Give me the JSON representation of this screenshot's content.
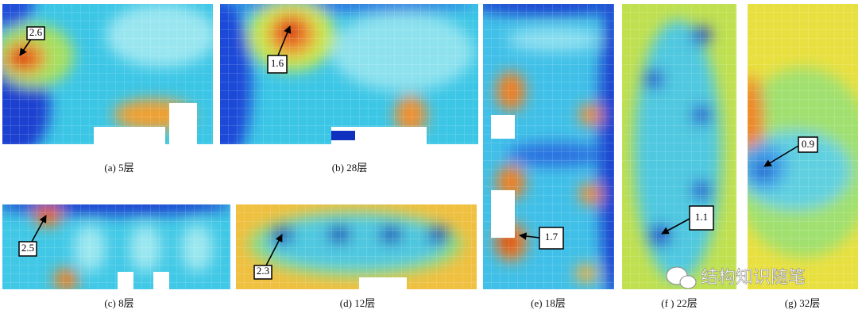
{
  "panels": [
    {
      "caption": "(a) 5层",
      "annotation": 2.6
    },
    {
      "caption": "(b) 28层",
      "annotation": 1.6
    },
    {
      "caption": "(c) 8层",
      "annotation": 2.5
    },
    {
      "caption": "(d) 12层",
      "annotation": 2.3
    },
    {
      "caption": "(e) 18层",
      "annotation": 1.7
    },
    {
      "caption": "(f ) 22层",
      "annotation": 1.1
    },
    {
      "caption": "(g) 32层",
      "annotation": 0.9
    }
  ],
  "watermark": "结构知识随笔"
}
